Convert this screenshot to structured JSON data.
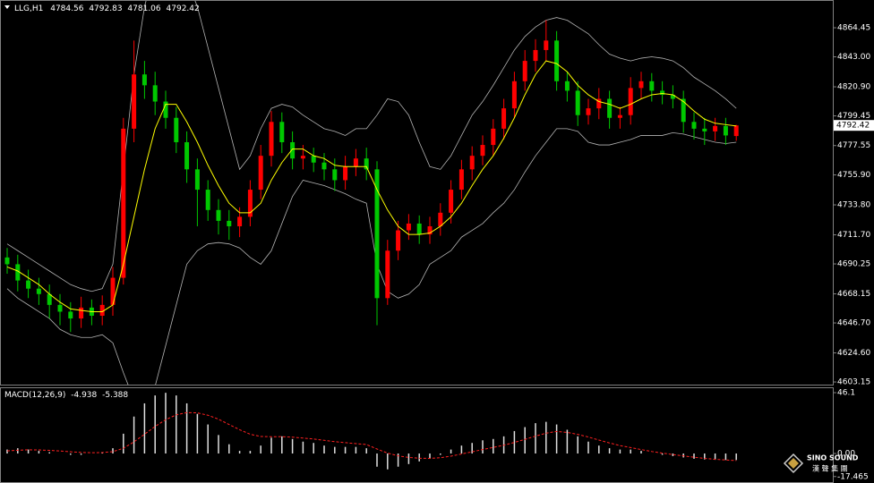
{
  "chart_data": [
    {
      "type": "candlestick",
      "title": "LLG,H1",
      "open": [
        4695,
        4690,
        4678,
        4672,
        4668,
        4660,
        4655,
        4650,
        4658,
        4652,
        4660,
        4680,
        4790,
        4830,
        4822,
        4810,
        4798,
        4780,
        4760,
        4745,
        4730,
        4722,
        4718,
        4725,
        4745,
        4770,
        4795,
        4780,
        4768,
        4770,
        4765,
        4760,
        4752,
        4762,
        4768,
        4760,
        4665,
        4700,
        4715,
        4720,
        4712,
        4718,
        4728,
        4745,
        4760,
        4770,
        4778,
        4790,
        4805,
        4825,
        4840,
        4848,
        4855,
        4825,
        4818,
        4800,
        4805,
        4812,
        4798,
        4800,
        4820,
        4825,
        4818,
        4815,
        4812,
        4795,
        4790,
        4788,
        4792,
        4784.56
      ],
      "high": [
        4702,
        4697,
        4686,
        4680,
        4675,
        4668,
        4662,
        4666,
        4664,
        4667,
        4688,
        4798,
        4855,
        4840,
        4832,
        4818,
        4806,
        4788,
        4768,
        4752,
        4738,
        4730,
        4732,
        4752,
        4778,
        4803,
        4802,
        4788,
        4778,
        4776,
        4772,
        4768,
        4770,
        4775,
        4776,
        4766,
        4708,
        4722,
        4727,
        4726,
        4725,
        4735,
        4752,
        4767,
        4777,
        4785,
        4797,
        4812,
        4832,
        4848,
        4856,
        4870,
        4862,
        4832,
        4825,
        4812,
        4820,
        4818,
        4806,
        4828,
        4832,
        4831,
        4825,
        4822,
        4818,
        4802,
        4798,
        4798,
        4798,
        4792.83
      ],
      "low": [
        4683,
        4670,
        4665,
        4660,
        4650,
        4645,
        4640,
        4643,
        4645,
        4645,
        4652,
        4675,
        4780,
        4812,
        4800,
        4790,
        4772,
        4750,
        4718,
        4722,
        4712,
        4708,
        4710,
        4718,
        4738,
        4762,
        4772,
        4760,
        4760,
        4758,
        4752,
        4744,
        4745,
        4755,
        4752,
        4645,
        4660,
        4693,
        4708,
        4705,
        4705,
        4711,
        4720,
        4738,
        4752,
        4763,
        4770,
        4782,
        4798,
        4818,
        4832,
        4840,
        4818,
        4810,
        4792,
        4793,
        4797,
        4790,
        4790,
        4793,
        4812,
        4810,
        4808,
        4805,
        4787,
        4782,
        4778,
        4781,
        4778,
        4781.06
      ],
      "close": [
        4690,
        4678,
        4672,
        4668,
        4660,
        4655,
        4650,
        4658,
        4652,
        4660,
        4680,
        4790,
        4830,
        4822,
        4810,
        4798,
        4780,
        4760,
        4745,
        4730,
        4722,
        4718,
        4725,
        4745,
        4770,
        4795,
        4780,
        4768,
        4770,
        4765,
        4760,
        4752,
        4762,
        4768,
        4760,
        4665,
        4700,
        4715,
        4720,
        4712,
        4718,
        4728,
        4745,
        4760,
        4770,
        4778,
        4790,
        4805,
        4825,
        4840,
        4848,
        4855,
        4825,
        4818,
        4800,
        4805,
        4812,
        4798,
        4800,
        4820,
        4825,
        4818,
        4815,
        4812,
        4795,
        4790,
        4788,
        4792,
        4785,
        4792.42
      ],
      "ma": [
        4688,
        4685,
        4680,
        4675,
        4668,
        4662,
        4657,
        4656,
        4655,
        4655,
        4660,
        4690,
        4725,
        4760,
        4790,
        4808,
        4808,
        4795,
        4780,
        4763,
        4748,
        4735,
        4728,
        4728,
        4735,
        4752,
        4765,
        4775,
        4775,
        4770,
        4768,
        4763,
        4762,
        4762,
        4762,
        4745,
        4730,
        4718,
        4712,
        4712,
        4713,
        4718,
        4725,
        4735,
        4748,
        4760,
        4770,
        4783,
        4798,
        4815,
        4830,
        4840,
        4838,
        4832,
        4822,
        4815,
        4810,
        4808,
        4805,
        4808,
        4812,
        4815,
        4816,
        4815,
        4810,
        4803,
        4797,
        4794,
        4793,
        4792
      ],
      "upper_band": [
        4705,
        4700,
        4695,
        4690,
        4685,
        4680,
        4675,
        4672,
        4670,
        4672,
        4690,
        4760,
        4830,
        4880,
        4910,
        4920,
        4915,
        4900,
        4880,
        4850,
        4820,
        4790,
        4760,
        4770,
        4790,
        4805,
        4808,
        4806,
        4800,
        4795,
        4790,
        4788,
        4785,
        4790,
        4790,
        4800,
        4812,
        4810,
        4800,
        4780,
        4762,
        4760,
        4770,
        4785,
        4800,
        4810,
        4822,
        4835,
        4848,
        4858,
        4865,
        4870,
        4872,
        4870,
        4865,
        4860,
        4852,
        4845,
        4842,
        4840,
        4842,
        4843,
        4842,
        4840,
        4835,
        4828,
        4823,
        4818,
        4812,
        4805
      ],
      "lower_band": [
        4672,
        4665,
        4660,
        4655,
        4650,
        4642,
        4638,
        4636,
        4636,
        4638,
        4632,
        4610,
        4590,
        4585,
        4600,
        4630,
        4660,
        4690,
        4700,
        4705,
        4706,
        4705,
        4702,
        4695,
        4690,
        4700,
        4720,
        4740,
        4752,
        4750,
        4748,
        4745,
        4742,
        4738,
        4735,
        4690,
        4670,
        4665,
        4668,
        4675,
        4690,
        4695,
        4700,
        4710,
        4715,
        4720,
        4728,
        4735,
        4745,
        4758,
        4770,
        4780,
        4790,
        4790,
        4788,
        4780,
        4778,
        4778,
        4780,
        4782,
        4785,
        4785,
        4785,
        4787,
        4786,
        4784,
        4782,
        4780,
        4779,
        4780
      ],
      "up_color": "#ff0000",
      "down_color": "#00c800",
      "ma_color": "#ffff00",
      "band_color": "#b4b4b4",
      "ylim": [
        4601.2,
        4883.6
      ],
      "yticks": [
        4864.45,
        {
          "value": 4843.0,
          "label": "4843.00"
        },
        {
          "value": 4820.9,
          "label": "4820.90"
        },
        4799.45,
        4777.55,
        {
          "value": 4755.9,
          "label": "4755.90"
        },
        {
          "value": 4733.8,
          "label": "4733.80"
        },
        {
          "value": 4711.7,
          "label": "4711.70"
        },
        4690.25,
        4668.15,
        {
          "value": 4646.7,
          "label": "4646.70"
        },
        {
          "value": 4624.6,
          "label": "4624.60"
        },
        4603.15
      ]
    },
    {
      "type": "macd",
      "title": "MACD(12,26,9)",
      "histogram": [
        3,
        4,
        3,
        2,
        1,
        0,
        -1,
        -1,
        0,
        1,
        4,
        15,
        28,
        38,
        44,
        46,
        44,
        38,
        30,
        22,
        14,
        7,
        2,
        2,
        6,
        12,
        13,
        11,
        9,
        8,
        6,
        5,
        5,
        5,
        4,
        -10,
        -12,
        -10,
        -8,
        -6,
        -4,
        -1,
        3,
        6,
        8,
        10,
        11,
        13,
        17,
        20,
        23,
        24,
        22,
        18,
        13,
        9,
        6,
        4,
        3,
        3,
        2,
        0,
        -1,
        -2,
        -3,
        -4,
        -4.5,
        -4.8,
        -4.9,
        -4.938
      ],
      "signal": [
        2,
        2.5,
        2.8,
        2.7,
        2.4,
        1.9,
        1.3,
        0.8,
        0.6,
        0.7,
        1.4,
        4,
        8.8,
        14.6,
        20.5,
        25.6,
        29.3,
        31,
        30.8,
        29,
        26,
        22,
        18,
        14.6,
        12.9,
        12.7,
        12.8,
        12.4,
        11.7,
        11,
        10,
        9,
        8.2,
        7.5,
        6.8,
        3.4,
        0.3,
        -1.8,
        -3,
        -3.6,
        -3.7,
        -3.2,
        -2,
        -0.4,
        1.3,
        3,
        4.6,
        6.3,
        8.4,
        10.7,
        13.2,
        15.4,
        16.7,
        16,
        14.5,
        12.5,
        10.2,
        8,
        6,
        4.5,
        3,
        1.5,
        0.3,
        -0.8,
        -1.8,
        -2.8,
        -3.7,
        -4.4,
        -4.9,
        -5.388
      ],
      "histogram_color": "#e0e0e0",
      "signal_color": "#ff2020",
      "ylim": [
        -21,
        49.5
      ],
      "yticks": [
        46.1,
        {
          "value": 0,
          "label": "0.00"
        },
        -17.465
      ]
    }
  ],
  "logo": {
    "text": "SINO SOUND",
    "subtext": "漢 聲 集 團"
  }
}
